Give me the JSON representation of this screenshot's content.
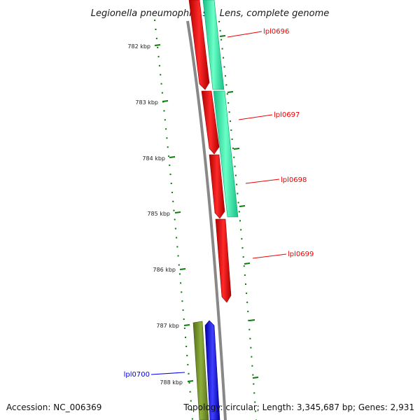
{
  "title": "Legionella pneumophila str. Lens, complete genome",
  "accession": "Accession: NC_006369",
  "summary": "Topology: circular; Length: 3,345,687 bp; Genes: 2,931",
  "ruler": {
    "unit": "kbp",
    "labels": [
      "782 kbp",
      "783 kbp",
      "784 kbp",
      "785 kbp",
      "786 kbp",
      "787 kbp",
      "788 kbp"
    ]
  },
  "genes": [
    {
      "name": "lpl0696",
      "color": "#ee0000",
      "strand": "plus"
    },
    {
      "name": "lpl0697",
      "color": "#ee0000",
      "strand": "plus"
    },
    {
      "name": "lpl0698",
      "color": "#ee0000",
      "strand": "plus"
    },
    {
      "name": "lpl0699",
      "color": "#ee0000",
      "strand": "plus"
    },
    {
      "name": "lpl0700",
      "color": "#0000ee",
      "strand": "minus"
    }
  ],
  "colors": {
    "red_gene": "#ee0000",
    "blue_gene": "#0000ee",
    "teal_feature": "#22e8a0",
    "olive_feature": "#6b8e23",
    "backbone": "#888888",
    "tick": "#0a7a0a"
  }
}
